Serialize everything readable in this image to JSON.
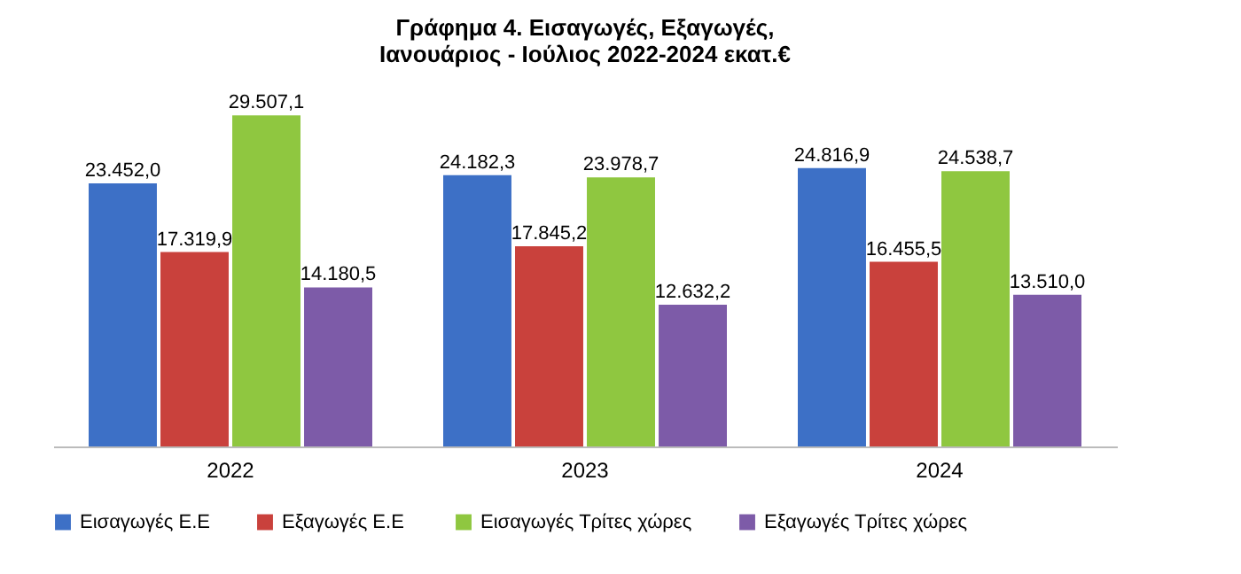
{
  "chart_data": {
    "type": "bar",
    "title": "Γράφημα 4. Εισαγωγές, Εξαγωγές,\nΙανουάριος - Ιούλιος 2022-2024 εκατ.€",
    "categories": [
      "2022",
      "2023",
      "2024"
    ],
    "series": [
      {
        "name": "Εισαγωγές Ε.Ε",
        "color": "#3d70c6",
        "values": [
          23452.0,
          24182.3,
          24816.9
        ],
        "value_labels": [
          "23.452,0",
          "24.182,3",
          "24.816,9"
        ]
      },
      {
        "name": "Εξαγωγές  Ε.Ε",
        "color": "#c9413c",
        "values": [
          17319.9,
          17845.2,
          16455.5
        ],
        "value_labels": [
          "17.319,9",
          "17.845,2",
          "16.455,5"
        ]
      },
      {
        "name": "Εισαγωγές Τρίτες χώρες",
        "color": "#8fc740",
        "values": [
          29507.1,
          23978.7,
          24538.7
        ],
        "value_labels": [
          "29.507,1",
          "23.978,7",
          "24.538,7"
        ]
      },
      {
        "name": "Εξαγωγές Τρίτες χώρες",
        "color": "#7d5ba8",
        "values": [
          14180.5,
          12632.2,
          13510.0
        ],
        "value_labels": [
          "14.180,5",
          "12.632,2",
          "13.510,0"
        ]
      }
    ],
    "legend": "bottom",
    "grid": false
  }
}
